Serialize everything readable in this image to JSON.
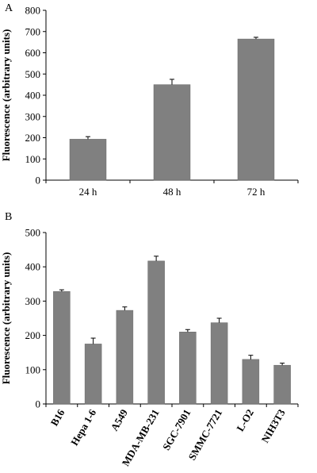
{
  "chart_data": [
    {
      "panel_label": "A",
      "type": "bar",
      "ylabel": "Fluorescence (arbitrary units)",
      "xlabel": "",
      "categories": [
        "24 h",
        "48 h",
        "72 h"
      ],
      "values": [
        193,
        450,
        665
      ],
      "errors": [
        12,
        25,
        8
      ],
      "ylim": [
        0,
        800
      ],
      "yticks": [
        0,
        100,
        200,
        300,
        400,
        500,
        600,
        700,
        800
      ],
      "bar_color": "#808080",
      "grid": false
    },
    {
      "panel_label": "B",
      "type": "bar",
      "ylabel": "Fluorescence (arbitrary units)",
      "xlabel": "",
      "categories": [
        "B16",
        "Hepa 1-6",
        "A549",
        "MDA-MB-231",
        "SGC-7901",
        "SMMC-7721",
        "L-O2",
        "NIH3T3"
      ],
      "values": [
        328,
        175,
        273,
        417,
        210,
        237,
        130,
        113
      ],
      "errors": [
        5,
        17,
        10,
        14,
        7,
        13,
        12,
        6
      ],
      "ylim": [
        0,
        500
      ],
      "yticks": [
        0,
        100,
        200,
        300,
        400,
        500
      ],
      "bar_color": "#808080",
      "grid": false
    }
  ]
}
